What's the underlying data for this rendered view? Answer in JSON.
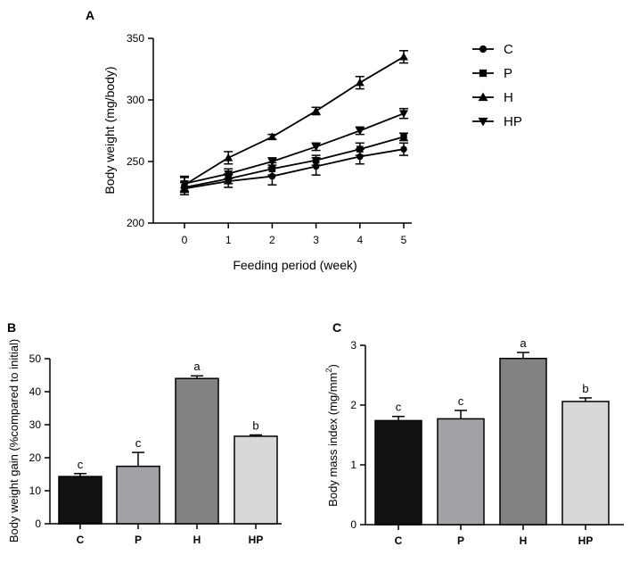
{
  "panels": [
    "A",
    "B",
    "C"
  ],
  "chart_data": [
    {
      "type": "line",
      "panel": "A",
      "xlabel": "Feeding period (week)",
      "ylabel": "Body weight (mg/body)",
      "x": [
        0,
        1,
        2,
        3,
        4,
        5
      ],
      "xlim": [
        0,
        5
      ],
      "ylim": [
        200,
        350
      ],
      "xticks": [
        "0",
        "1",
        "2",
        "3",
        "4",
        "5"
      ],
      "yticks": [
        "200",
        "250",
        "300",
        "350"
      ],
      "grid": false,
      "legend_position": "right",
      "series": [
        {
          "name": "C",
          "marker": "circle",
          "values": [
            228,
            234,
            238,
            246,
            254,
            260
          ],
          "errors": [
            5,
            5,
            7,
            7,
            6,
            5
          ]
        },
        {
          "name": "P",
          "marker": "square",
          "values": [
            229,
            236,
            244,
            251,
            260,
            270
          ],
          "errors": [
            4,
            4,
            5,
            4,
            5,
            3
          ]
        },
        {
          "name": "H",
          "marker": "triangle-up",
          "values": [
            231,
            253,
            270,
            291,
            314,
            335
          ],
          "errors": [
            6,
            5,
            2,
            3,
            5,
            5
          ]
        },
        {
          "name": "HP",
          "marker": "triangle-down",
          "values": [
            232,
            240,
            250,
            262,
            275,
            289
          ],
          "errors": [
            6,
            4,
            3,
            3,
            3,
            4
          ]
        }
      ]
    },
    {
      "type": "bar",
      "panel": "B",
      "ylabel": "Body weight gain (%compared to initial)",
      "categories": [
        "C",
        "P",
        "H",
        "HP"
      ],
      "values": [
        14.3,
        17.4,
        44.0,
        26.5
      ],
      "errors": [
        0.9,
        4.2,
        0.8,
        0.4
      ],
      "significance": [
        "c",
        "c",
        "a",
        "b"
      ],
      "ylim": [
        0,
        50
      ],
      "yticks": [
        "0",
        "10",
        "20",
        "30",
        "40",
        "50"
      ],
      "colors": [
        "#111111",
        "#a2a2a8",
        "#828282",
        "#d8d8d8"
      ]
    },
    {
      "type": "bar",
      "panel": "C",
      "ylabel": "Body mass index (mg/mm",
      "ylabel_sup": "2",
      "ylabel_end": ")",
      "categories": [
        "C",
        "P",
        "H",
        "HP"
      ],
      "values": [
        1.74,
        1.77,
        2.78,
        2.06
      ],
      "errors": [
        0.07,
        0.14,
        0.1,
        0.06
      ],
      "significance": [
        "c",
        "c",
        "a",
        "b"
      ],
      "ylim": [
        0,
        3
      ],
      "yticks": [
        "0",
        "1",
        "2",
        "3"
      ],
      "colors": [
        "#111111",
        "#a2a2a8",
        "#828282",
        "#d8d8d8"
      ]
    }
  ]
}
